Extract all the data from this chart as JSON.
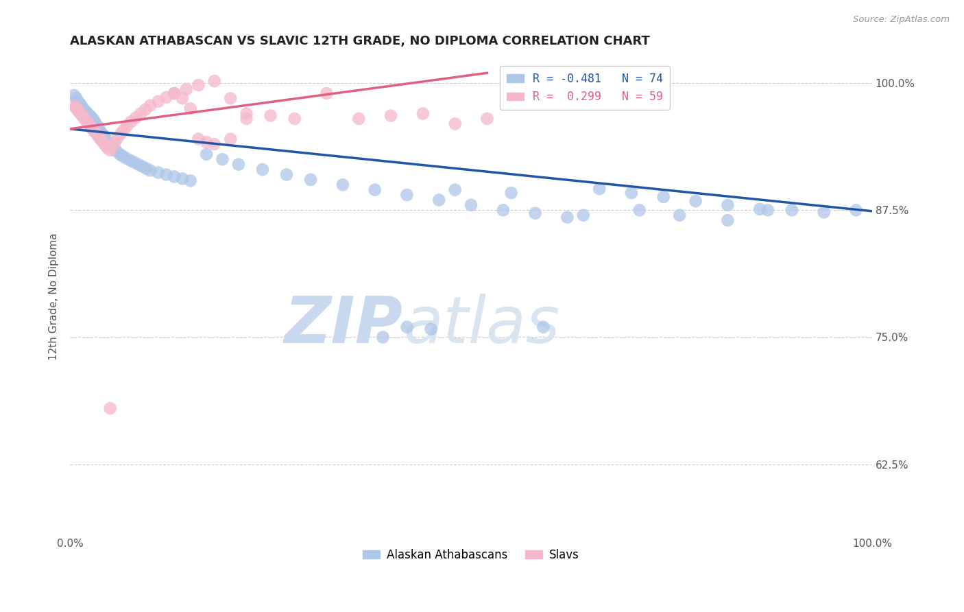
{
  "title": "ALASKAN ATHABASCAN VS SLAVIC 12TH GRADE, NO DIPLOMA CORRELATION CHART",
  "source_text": "Source: ZipAtlas.com",
  "ylabel": "12th Grade, No Diploma",
  "watermark_zip": "ZIP",
  "watermark_atlas": "atlas",
  "legend_blue_label": "R = -0.481   N = 74",
  "legend_pink_label": "R =  0.299   N = 59",
  "legend_labels_bottom": [
    "Alaskan Athabascans",
    "Slavs"
  ],
  "athabascan_color": "#aec6e8",
  "slav_color": "#f5b8cb",
  "athabascan_line_color": "#2155a8",
  "slav_line_color": "#e06080",
  "background_color": "#ffffff",
  "grid_color": "#cccccc",
  "xlim": [
    0.0,
    1.0
  ],
  "ylim": [
    0.555,
    1.025
  ],
  "yticks": [
    0.625,
    0.75,
    0.875,
    1.0
  ],
  "ytick_labels": [
    "62.5%",
    "75.0%",
    "87.5%",
    "100.0%"
  ],
  "athabascan_trend_x": [
    0.0,
    1.0
  ],
  "athabascan_trend_y": [
    0.955,
    0.874
  ],
  "slav_trend_x": [
    0.0,
    0.52
  ],
  "slav_trend_y": [
    0.955,
    1.01
  ],
  "athabascan_x": [
    0.005,
    0.008,
    0.01,
    0.012,
    0.014,
    0.016,
    0.018,
    0.02,
    0.022,
    0.024,
    0.026,
    0.028,
    0.03,
    0.032,
    0.034,
    0.036,
    0.038,
    0.04,
    0.042,
    0.044,
    0.046,
    0.048,
    0.05,
    0.052,
    0.055,
    0.058,
    0.062,
    0.066,
    0.07,
    0.075,
    0.08,
    0.085,
    0.09,
    0.095,
    0.1,
    0.11,
    0.12,
    0.13,
    0.14,
    0.15,
    0.17,
    0.19,
    0.21,
    0.24,
    0.27,
    0.3,
    0.34,
    0.38,
    0.42,
    0.46,
    0.5,
    0.54,
    0.58,
    0.62,
    0.66,
    0.7,
    0.74,
    0.78,
    0.82,
    0.86,
    0.9,
    0.94,
    0.98,
    0.48,
    0.55,
    0.64,
    0.71,
    0.76,
    0.82,
    0.87,
    0.42,
    0.39,
    0.45,
    0.59
  ],
  "athabascan_y": [
    0.988,
    0.985,
    0.982,
    0.98,
    0.978,
    0.975,
    0.973,
    0.972,
    0.97,
    0.968,
    0.967,
    0.965,
    0.963,
    0.96,
    0.958,
    0.955,
    0.952,
    0.95,
    0.948,
    0.945,
    0.943,
    0.941,
    0.94,
    0.938,
    0.936,
    0.933,
    0.93,
    0.928,
    0.926,
    0.924,
    0.922,
    0.92,
    0.918,
    0.916,
    0.914,
    0.912,
    0.91,
    0.908,
    0.906,
    0.904,
    0.93,
    0.925,
    0.92,
    0.915,
    0.91,
    0.905,
    0.9,
    0.895,
    0.89,
    0.885,
    0.88,
    0.875,
    0.872,
    0.868,
    0.896,
    0.892,
    0.888,
    0.884,
    0.88,
    0.876,
    0.875,
    0.873,
    0.875,
    0.895,
    0.892,
    0.87,
    0.875,
    0.87,
    0.865,
    0.875,
    0.76,
    0.75,
    0.758,
    0.76
  ],
  "slav_x": [
    0.005,
    0.007,
    0.009,
    0.011,
    0.013,
    0.015,
    0.017,
    0.019,
    0.021,
    0.023,
    0.025,
    0.027,
    0.029,
    0.031,
    0.033,
    0.035,
    0.037,
    0.039,
    0.041,
    0.043,
    0.045,
    0.047,
    0.05,
    0.053,
    0.056,
    0.059,
    0.063,
    0.067,
    0.071,
    0.076,
    0.082,
    0.088,
    0.094,
    0.1,
    0.11,
    0.12,
    0.13,
    0.145,
    0.16,
    0.18,
    0.2,
    0.22,
    0.25,
    0.28,
    0.32,
    0.36,
    0.4,
    0.44,
    0.48,
    0.52,
    0.16,
    0.17,
    0.18,
    0.2,
    0.22,
    0.13,
    0.14,
    0.15,
    0.05
  ],
  "slav_y": [
    0.978,
    0.976,
    0.974,
    0.972,
    0.97,
    0.968,
    0.966,
    0.964,
    0.962,
    0.96,
    0.958,
    0.956,
    0.954,
    0.952,
    0.95,
    0.948,
    0.946,
    0.944,
    0.942,
    0.94,
    0.938,
    0.936,
    0.934,
    0.938,
    0.942,
    0.946,
    0.95,
    0.954,
    0.958,
    0.962,
    0.966,
    0.97,
    0.974,
    0.978,
    0.982,
    0.986,
    0.99,
    0.994,
    0.998,
    1.002,
    0.985,
    0.97,
    0.968,
    0.965,
    0.99,
    0.965,
    0.968,
    0.97,
    0.96,
    0.965,
    0.945,
    0.942,
    0.94,
    0.945,
    0.965,
    0.99,
    0.985,
    0.975,
    0.68
  ]
}
